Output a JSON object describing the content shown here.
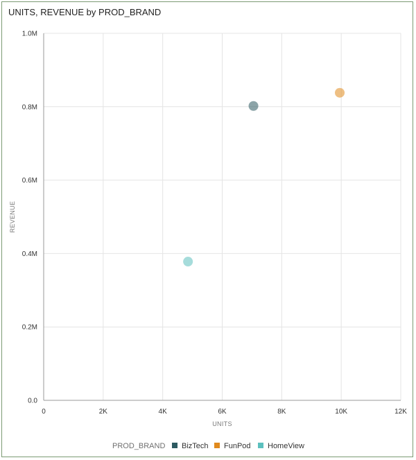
{
  "chart_data": {
    "type": "scatter",
    "title": "UNITS, REVENUE by PROD_BRAND",
    "xlabel": "UNITS",
    "ylabel": "REVENUE",
    "xlim": [
      0,
      12000
    ],
    "ylim": [
      0,
      1000000
    ],
    "x_ticks": [
      "0",
      "2K",
      "4K",
      "6K",
      "8K",
      "10K",
      "12K"
    ],
    "y_ticks": [
      "0.0",
      "0.2M",
      "0.4M",
      "0.6M",
      "0.8M",
      "1.0M"
    ],
    "grid": true,
    "legend_position": "bottom",
    "legend_title": "PROD_BRAND",
    "series": [
      {
        "name": "BizTech",
        "color": "#2d5a61",
        "points": [
          {
            "x": 7050,
            "y": 802000
          }
        ]
      },
      {
        "name": "FunPod",
        "color": "#e08a1e",
        "points": [
          {
            "x": 9950,
            "y": 838000
          }
        ]
      },
      {
        "name": "HomeView",
        "color": "#5cc0be",
        "points": [
          {
            "x": 4850,
            "y": 378000
          }
        ]
      }
    ]
  }
}
